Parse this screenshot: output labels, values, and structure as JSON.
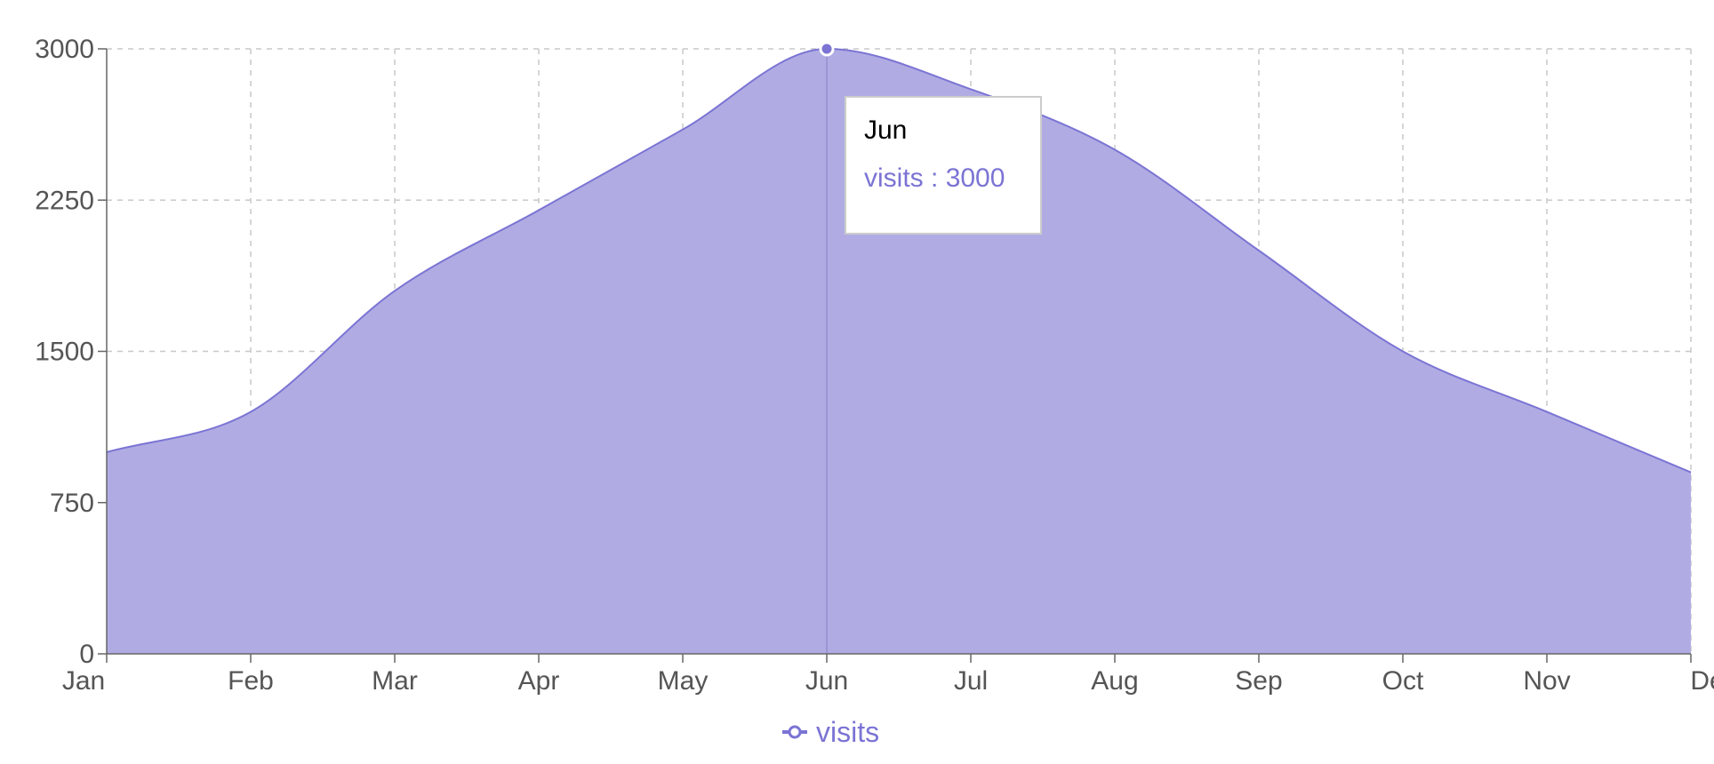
{
  "colors": {
    "series_stroke": "#7b74d4",
    "series_fill": "#b0acE3",
    "axis_text": "#555555",
    "grid": "#c8c8c8",
    "tooltip_label": "#000000"
  },
  "tooltip": {
    "title": "Jun",
    "series_name": "visits",
    "separator": " : ",
    "value": "3000"
  },
  "legend": {
    "label": "visits",
    "position": "bottom-center"
  },
  "chart_data": {
    "type": "area",
    "title": "",
    "xlabel": "",
    "ylabel": "",
    "categories": [
      "Jan",
      "Feb",
      "Mar",
      "Apr",
      "May",
      "Jun",
      "Jul",
      "Aug",
      "Sep",
      "Oct",
      "Nov",
      "Dec"
    ],
    "series": [
      {
        "name": "visits",
        "values": [
          1000,
          1200,
          1800,
          2200,
          2600,
          3000,
          2800,
          2500,
          2000,
          1500,
          1200,
          900
        ]
      }
    ],
    "ylim": [
      0,
      3000
    ],
    "yticks": [
      0,
      750,
      1500,
      2250,
      3000
    ],
    "grid": true,
    "active_category": "Jun",
    "curve": "smooth"
  }
}
